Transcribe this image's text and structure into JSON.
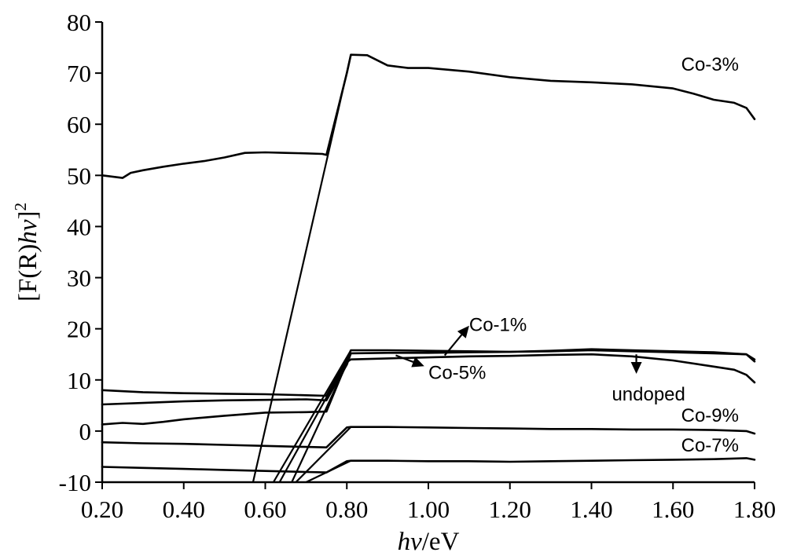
{
  "chart_data": {
    "type": "line",
    "xlabel_italic": "hv",
    "xlabel_rest": "/eV",
    "ylabel_prefix": "[F(R)",
    "ylabel_italic": "hv",
    "ylabel_suffix": "]",
    "ylabel_exp": "2",
    "xlim": [
      0.2,
      1.8
    ],
    "ylim": [
      -10,
      80
    ],
    "xticks": [
      "0.20",
      "0.40",
      "0.60",
      "0.80",
      "1.00",
      "1.20",
      "1.40",
      "1.60",
      "1.80"
    ],
    "yticks": [
      "-10",
      "0",
      "10",
      "20",
      "30",
      "40",
      "50",
      "60",
      "70",
      "80"
    ],
    "grid": false,
    "series": [
      {
        "name": "Co-3%",
        "x": [
          0.2,
          0.25,
          0.27,
          0.3,
          0.35,
          0.4,
          0.45,
          0.5,
          0.55,
          0.6,
          0.65,
          0.7,
          0.74,
          0.75,
          0.8,
          0.81,
          0.85,
          0.9,
          0.95,
          1.0,
          1.1,
          1.2,
          1.3,
          1.4,
          1.5,
          1.6,
          1.65,
          1.7,
          1.75,
          1.78,
          1.8
        ],
        "y": [
          50,
          49.5,
          50.5,
          51,
          51.7,
          52.3,
          52.8,
          53.5,
          54.4,
          54.5,
          54.4,
          54.3,
          54.2,
          54,
          70,
          73.6,
          73.5,
          71.5,
          71,
          71,
          70.3,
          69.2,
          68.5,
          68.2,
          67.8,
          67,
          66,
          64.8,
          64.2,
          63.2,
          61
        ]
      },
      {
        "name": "Co-1%",
        "x": [
          0.2,
          0.3,
          0.4,
          0.5,
          0.6,
          0.7,
          0.75,
          0.8,
          0.81,
          0.9,
          1.0,
          1.1,
          1.2,
          1.3,
          1.4,
          1.5,
          1.6,
          1.7,
          1.78,
          1.8
        ],
        "y": [
          8,
          7.6,
          7.4,
          7.3,
          7.2,
          7.0,
          6.9,
          14,
          15.8,
          15.8,
          15.7,
          15.6,
          15.5,
          15.6,
          15.8,
          15.6,
          15.4,
          15.2,
          15.0,
          14.0
        ]
      },
      {
        "name": "Co-5%",
        "x": [
          0.2,
          0.3,
          0.4,
          0.5,
          0.6,
          0.7,
          0.75,
          0.8,
          0.81,
          0.9,
          1.0,
          1.1,
          1.2,
          1.3,
          1.4,
          1.5,
          1.6,
          1.7,
          1.78,
          1.8
        ],
        "y": [
          5.2,
          5.5,
          5.8,
          6.0,
          6.1,
          6.2,
          6.0,
          13,
          15.2,
          15.3,
          15.3,
          15.4,
          15.5,
          15.7,
          16.0,
          15.8,
          15.6,
          15.4,
          15.0,
          13.6
        ]
      },
      {
        "name": "undoped",
        "x": [
          0.2,
          0.25,
          0.3,
          0.35,
          0.4,
          0.5,
          0.6,
          0.7,
          0.75,
          0.8,
          0.81,
          0.9,
          1.0,
          1.1,
          1.2,
          1.3,
          1.4,
          1.5,
          1.6,
          1.7,
          1.75,
          1.78,
          1.8
        ],
        "y": [
          1.3,
          1.6,
          1.4,
          1.8,
          2.3,
          3.0,
          3.6,
          3.7,
          3.8,
          13.5,
          14.0,
          14.2,
          14.4,
          14.6,
          14.7,
          14.9,
          15.0,
          14.6,
          13.8,
          12.6,
          12.0,
          11.0,
          9.5
        ]
      },
      {
        "name": "Co-9%",
        "x": [
          0.2,
          0.3,
          0.4,
          0.5,
          0.6,
          0.7,
          0.75,
          0.8,
          0.81,
          0.9,
          1.0,
          1.1,
          1.2,
          1.3,
          1.4,
          1.5,
          1.6,
          1.7,
          1.78,
          1.8
        ],
        "y": [
          -2.2,
          -2.4,
          -2.5,
          -2.7,
          -2.9,
          -3.1,
          -3.2,
          0.7,
          0.8,
          0.8,
          0.7,
          0.6,
          0.5,
          0.4,
          0.4,
          0.3,
          0.3,
          0.2,
          0.0,
          -0.5
        ]
      },
      {
        "name": "Co-7%",
        "x": [
          0.2,
          0.3,
          0.4,
          0.5,
          0.6,
          0.7,
          0.75,
          0.8,
          0.81,
          0.9,
          1.0,
          1.1,
          1.2,
          1.3,
          1.4,
          1.5,
          1.6,
          1.7,
          1.78,
          1.8
        ],
        "y": [
          -7.0,
          -7.2,
          -7.4,
          -7.6,
          -7.8,
          -8.0,
          -8.1,
          -5.9,
          -5.8,
          -5.8,
          -5.9,
          -5.9,
          -6.0,
          -5.9,
          -5.8,
          -5.7,
          -5.6,
          -5.5,
          -5.3,
          -5.6
        ]
      }
    ],
    "fit_lines": [
      {
        "x": [
          0.57,
          0.81
        ],
        "y": [
          -10,
          73.6
        ]
      },
      {
        "x": [
          0.62,
          0.81
        ],
        "y": [
          -10,
          15.8
        ]
      },
      {
        "x": [
          0.635,
          0.81
        ],
        "y": [
          -10,
          15.2
        ]
      },
      {
        "x": [
          0.665,
          0.805
        ],
        "y": [
          -10,
          14.0
        ]
      },
      {
        "x": [
          0.675,
          0.81
        ],
        "y": [
          -10,
          0.8
        ]
      },
      {
        "x": [
          0.7,
          0.81
        ],
        "y": [
          -10,
          -5.8
        ]
      }
    ],
    "labels": [
      {
        "text": "Co-3%",
        "x": 1.62,
        "y": 70.5,
        "anchor": "start"
      },
      {
        "text": "Co-1%",
        "x": 1.1,
        "y": 19.6,
        "anchor": "start"
      },
      {
        "text": "Co-5%",
        "x": 1.0,
        "y": 10.2,
        "anchor": "start"
      },
      {
        "text": "undoped",
        "x": 1.45,
        "y": 6.0,
        "anchor": "start"
      },
      {
        "text": "Co-9%",
        "x": 1.62,
        "y": 1.8,
        "anchor": "start"
      },
      {
        "text": "Co-7%",
        "x": 1.62,
        "y": -4.0,
        "anchor": "start"
      }
    ],
    "arrows": [
      {
        "from": [
          1.04,
          14.8
        ],
        "to": [
          1.1,
          20.6
        ]
      },
      {
        "from": [
          0.92,
          14.8
        ],
        "to": [
          0.99,
          12.7
        ]
      },
      {
        "from": [
          1.51,
          15.0
        ],
        "to": [
          1.51,
          11.2
        ]
      }
    ]
  }
}
